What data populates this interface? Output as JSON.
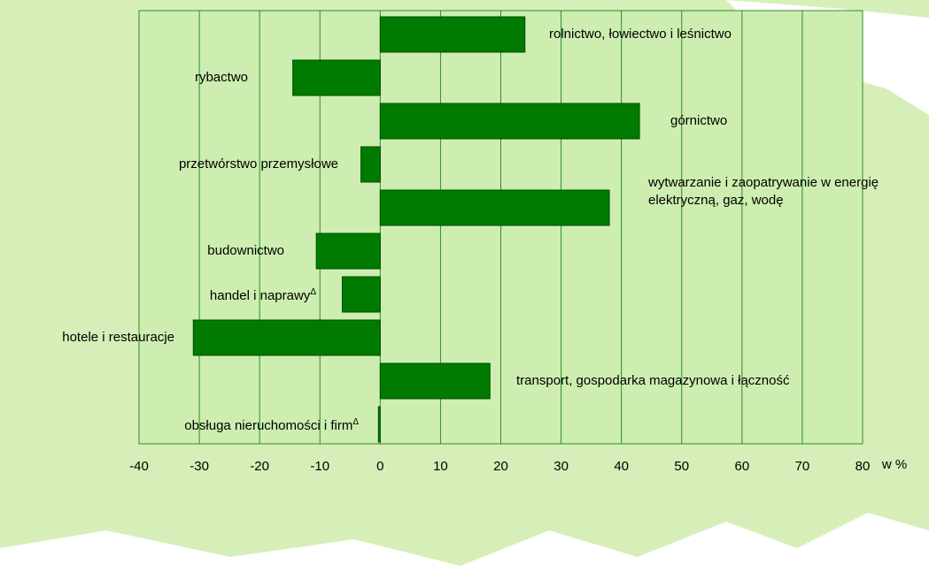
{
  "chart_data": {
    "type": "barh",
    "categories": [
      "rolnictwo, łowiectwo i leśnictwo",
      "rybactwo",
      "górnictwo",
      "przetwórstwo przemysłowe",
      "wytwarzanie i zaopatrywanie w energię elektryczną, gaz, wodę",
      "budownictwo",
      "handel i naprawy",
      "hotele i restauracje",
      "transport, gospodarka magazynowa i łączność",
      "obsługa nieruchomości i firm"
    ],
    "superscripts": {
      "6": "Δ",
      "9": "Δ"
    },
    "values": [
      24,
      -14.5,
      43,
      -3.2,
      38,
      -10.6,
      -6.3,
      -31,
      18.2,
      -0.3
    ],
    "color": "#007a00",
    "xlim": [
      -40,
      80
    ],
    "xticks": [
      -40,
      -30,
      -20,
      -10,
      0,
      10,
      20,
      30,
      40,
      50,
      60,
      70,
      80
    ],
    "xlabel": "w %",
    "grid": true
  }
}
